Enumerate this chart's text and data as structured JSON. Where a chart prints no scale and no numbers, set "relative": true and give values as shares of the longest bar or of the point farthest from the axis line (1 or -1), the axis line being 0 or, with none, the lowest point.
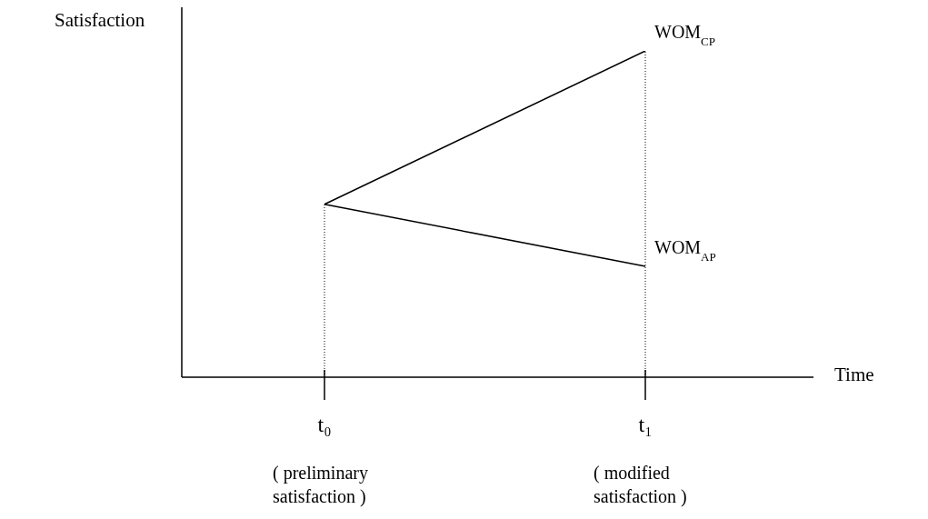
{
  "chart_data": {
    "type": "line",
    "relative": true,
    "ylabel": "Satisfaction",
    "xlabel": "Time",
    "categories": [
      "t₀",
      "t₁"
    ],
    "series": [
      {
        "name": "WOM$_{CP}$",
        "color": "#000000",
        "values": [
          0.53,
          1
        ]
      },
      {
        "name": "WOM$_{AP}$",
        "color": "#000000",
        "values": [
          0.53,
          0.34
        ]
      }
    ],
    "annotations": [
      "( preliminary satisfaction )",
      "( modified satisfaction )"
    ],
    "ref_lines": [
      {
        "axis": "x",
        "value": "t₀",
        "color": "#000000",
        "line_style": "dotted"
      },
      {
        "axis": "x",
        "value": "t₁",
        "color": "#000000",
        "line_style": "dotted"
      }
    ],
    "marker": "none",
    "line_style": "solid",
    "grid": false,
    "legend": false
  }
}
